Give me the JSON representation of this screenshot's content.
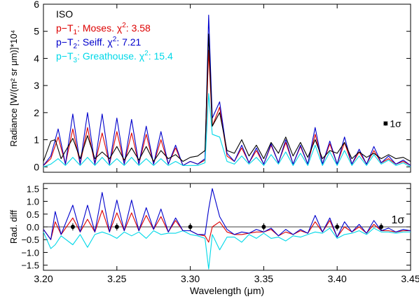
{
  "chart_data": [
    {
      "type": "line",
      "title": "",
      "xlabel": "",
      "ylabel": "Radiance [W/(m² sr μm)]*10⁴",
      "xlim": [
        3.2,
        3.45
      ],
      "ylim": [
        -0.2,
        6.0
      ],
      "yticks": [
        "0",
        "1",
        "2",
        "3",
        "4",
        "5",
        "6"
      ],
      "legend_placement": "top-left",
      "legend": [
        {
          "key": "iso",
          "base": "ISO",
          "label": "ISO",
          "color": "#000000"
        },
        {
          "key": "t1",
          "base": "p−T",
          "sub": "1",
          "rest": ": Moses.  χ",
          "sup": "2",
          "tail": ": 3.58",
          "label": "p−T1: Moses.  χ2: 3.58",
          "color": "#dd0000"
        },
        {
          "key": "t2",
          "base": "p−T",
          "sub": "2",
          "rest": ": Seiff.  χ",
          "sup": "2",
          "tail": ": 7.21",
          "label": "p−T2: Seiff.  χ2: 7.21",
          "color": "#0000cc"
        },
        {
          "key": "t3",
          "base": "p−T",
          "sub": "3",
          "rest": ": Greathouse.  χ",
          "sup": "2",
          "tail": ": 15.4",
          "label": "p−T3: Greathouse.  χ2: 15.4",
          "color": "#00d8e8"
        }
      ],
      "errorbar": {
        "label": "1σ",
        "x": 3.433,
        "y": 1.6,
        "err": 0.06
      },
      "series": [
        {
          "name": "ISO",
          "color": "#000000",
          "x": [
            3.2,
            3.205,
            3.208,
            3.212,
            3.22,
            3.225,
            3.23,
            3.235,
            3.24,
            3.245,
            3.25,
            3.255,
            3.26,
            3.265,
            3.27,
            3.275,
            3.28,
            3.285,
            3.29,
            3.295,
            3.3,
            3.305,
            3.31,
            3.3125,
            3.315,
            3.32,
            3.325,
            3.33,
            3.335,
            3.34,
            3.345,
            3.35,
            3.355,
            3.36,
            3.365,
            3.37,
            3.375,
            3.38,
            3.385,
            3.39,
            3.395,
            3.4,
            3.405,
            3.41,
            3.415,
            3.42,
            3.425,
            3.43,
            3.435,
            3.44,
            3.445,
            3.45
          ],
          "y": [
            0.2,
            0.95,
            1.0,
            0.3,
            1.05,
            0.3,
            1.15,
            0.3,
            0.55,
            0.3,
            0.75,
            0.25,
            0.7,
            0.25,
            0.75,
            0.2,
            0.6,
            0.3,
            0.45,
            0.2,
            0.35,
            0.4,
            0.6,
            4.9,
            1.5,
            2.0,
            0.6,
            0.5,
            1.0,
            0.4,
            0.8,
            0.3,
            0.9,
            0.5,
            1.1,
            0.4,
            0.9,
            0.35,
            1.0,
            0.3,
            0.6,
            0.5,
            0.9,
            0.3,
            0.55,
            0.35,
            0.5,
            0.3,
            0.45,
            0.3,
            0.35,
            0.2
          ]
        },
        {
          "name": "p−T1: Moses.  χ2: 3.58",
          "color": "#dd0000",
          "x": [
            3.2,
            3.205,
            3.21,
            3.215,
            3.22,
            3.225,
            3.23,
            3.235,
            3.24,
            3.245,
            3.25,
            3.255,
            3.26,
            3.265,
            3.27,
            3.275,
            3.28,
            3.285,
            3.29,
            3.295,
            3.3,
            3.305,
            3.31,
            3.3125,
            3.315,
            3.32,
            3.325,
            3.33,
            3.335,
            3.34,
            3.345,
            3.35,
            3.355,
            3.36,
            3.365,
            3.37,
            3.375,
            3.38,
            3.385,
            3.39,
            3.395,
            3.4,
            3.405,
            3.41,
            3.415,
            3.42,
            3.425,
            3.43,
            3.435,
            3.44,
            3.445,
            3.45
          ],
          "y": [
            0.05,
            0.3,
            1.1,
            0.1,
            1.4,
            0.1,
            1.45,
            0.1,
            1.25,
            0.1,
            1.3,
            0.1,
            1.25,
            0.1,
            1.2,
            0.1,
            1.0,
            0.1,
            0.7,
            0.05,
            0.2,
            0.1,
            0.25,
            4.3,
            1.5,
            2.2,
            0.4,
            0.2,
            0.7,
            0.15,
            0.6,
            0.1,
            0.8,
            0.15,
            0.9,
            0.1,
            0.75,
            0.1,
            1.2,
            0.1,
            0.85,
            0.1,
            0.9,
            0.1,
            0.55,
            0.1,
            0.6,
            0.15,
            0.3,
            0.1,
            0.2,
            0.05
          ]
        },
        {
          "name": "p−T2: Seiff.  χ2: 7.21",
          "color": "#0000cc",
          "x": [
            3.2,
            3.205,
            3.21,
            3.215,
            3.22,
            3.225,
            3.23,
            3.235,
            3.24,
            3.245,
            3.25,
            3.255,
            3.26,
            3.265,
            3.27,
            3.275,
            3.28,
            3.285,
            3.29,
            3.295,
            3.3,
            3.305,
            3.31,
            3.3125,
            3.315,
            3.32,
            3.325,
            3.33,
            3.335,
            3.34,
            3.345,
            3.35,
            3.355,
            3.36,
            3.365,
            3.37,
            3.375,
            3.38,
            3.385,
            3.39,
            3.395,
            3.4,
            3.405,
            3.41,
            3.415,
            3.42,
            3.425,
            3.43,
            3.435,
            3.44,
            3.445,
            3.45
          ],
          "y": [
            0.05,
            0.4,
            1.4,
            0.1,
            1.95,
            0.1,
            2.0,
            0.1,
            1.95,
            0.1,
            1.8,
            0.1,
            1.75,
            0.1,
            1.5,
            0.1,
            1.3,
            0.1,
            0.8,
            0.05,
            0.2,
            0.1,
            0.3,
            5.6,
            1.8,
            2.4,
            0.5,
            0.2,
            0.8,
            0.15,
            0.7,
            0.1,
            0.85,
            0.15,
            1.0,
            0.1,
            0.8,
            0.1,
            1.45,
            0.1,
            0.95,
            0.1,
            1.1,
            0.1,
            0.65,
            0.1,
            0.75,
            0.15,
            0.4,
            0.1,
            0.25,
            0.05
          ]
        },
        {
          "name": "p−T3: Greathouse.  χ2: 15.4",
          "color": "#00d8e8",
          "x": [
            3.2,
            3.205,
            3.21,
            3.215,
            3.22,
            3.225,
            3.23,
            3.235,
            3.24,
            3.245,
            3.25,
            3.255,
            3.26,
            3.265,
            3.27,
            3.275,
            3.28,
            3.285,
            3.29,
            3.295,
            3.3,
            3.305,
            3.31,
            3.3125,
            3.315,
            3.32,
            3.325,
            3.33,
            3.335,
            3.34,
            3.345,
            3.35,
            3.355,
            3.36,
            3.365,
            3.37,
            3.375,
            3.38,
            3.385,
            3.39,
            3.395,
            3.4,
            3.405,
            3.41,
            3.415,
            3.42,
            3.425,
            3.43,
            3.435,
            3.44,
            3.445,
            3.45
          ],
          "y": [
            0.0,
            0.1,
            0.3,
            0.05,
            0.35,
            0.05,
            0.35,
            0.05,
            0.35,
            0.05,
            0.3,
            0.05,
            0.35,
            0.05,
            0.3,
            0.05,
            0.3,
            0.05,
            0.2,
            0.05,
            0.05,
            0.05,
            0.15,
            2.7,
            1.2,
            1.1,
            0.2,
            0.1,
            0.4,
            0.1,
            0.35,
            0.05,
            0.45,
            0.1,
            0.55,
            0.05,
            0.5,
            0.05,
            0.8,
            0.05,
            0.55,
            0.05,
            0.6,
            0.05,
            0.4,
            0.05,
            0.45,
            0.1,
            0.25,
            0.05,
            0.15,
            0.0
          ]
        }
      ]
    },
    {
      "type": "line",
      "title": "",
      "xlabel": "Wavelength (μm)",
      "ylabel": "Rad. diff",
      "xlim": [
        3.2,
        3.45
      ],
      "ylim": [
        -1.7,
        1.7
      ],
      "xticks": [
        "3.20",
        "3.25",
        "3.30",
        "3.35",
        "3.40",
        "3.45"
      ],
      "yticks": [
        "1.5",
        "1.0",
        "0.5",
        "0.0",
        "−0.5",
        "−1.0",
        "−1.5"
      ],
      "errorbar_label": "1σ",
      "errorbars": {
        "x": [
          3.22,
          3.25,
          3.3,
          3.35,
          3.4,
          3.43
        ],
        "y": [
          0.0,
          0.0,
          0.0,
          0.0,
          0.0,
          0.0
        ],
        "err": [
          0.06,
          0.06,
          0.06,
          0.06,
          0.06,
          0.06
        ]
      },
      "series": [
        {
          "name": "p−T1: Moses.  χ2: 3.58",
          "color": "#dd0000",
          "x": [
            3.2,
            3.205,
            3.208,
            3.212,
            3.22,
            3.225,
            3.23,
            3.235,
            3.24,
            3.245,
            3.25,
            3.255,
            3.26,
            3.265,
            3.27,
            3.275,
            3.28,
            3.285,
            3.29,
            3.295,
            3.3,
            3.305,
            3.31,
            3.3125,
            3.315,
            3.32,
            3.325,
            3.33,
            3.335,
            3.34,
            3.345,
            3.35,
            3.355,
            3.36,
            3.365,
            3.37,
            3.375,
            3.38,
            3.385,
            3.39,
            3.395,
            3.4,
            3.405,
            3.41,
            3.415,
            3.42,
            3.425,
            3.43,
            3.435,
            3.44,
            3.445,
            3.45
          ],
          "y": [
            -0.1,
            -0.5,
            0.2,
            -0.3,
            0.35,
            -0.2,
            0.3,
            -0.2,
            0.65,
            -0.2,
            0.55,
            -0.15,
            0.55,
            -0.15,
            0.45,
            -0.1,
            0.4,
            -0.2,
            0.25,
            -0.15,
            -0.15,
            -0.3,
            -0.35,
            -0.6,
            0.0,
            0.2,
            -0.2,
            -0.3,
            -0.3,
            -0.25,
            -0.2,
            -0.2,
            -0.1,
            -0.35,
            -0.2,
            -0.3,
            -0.15,
            -0.25,
            0.2,
            -0.2,
            0.25,
            -0.4,
            0.0,
            -0.2,
            0.0,
            -0.25,
            0.1,
            -0.15,
            -0.15,
            -0.2,
            -0.15,
            -0.15
          ]
        },
        {
          "name": "p−T2: Seiff.  χ2: 7.21",
          "color": "#0000cc",
          "x": [
            3.2,
            3.205,
            3.208,
            3.212,
            3.22,
            3.225,
            3.23,
            3.235,
            3.24,
            3.245,
            3.25,
            3.255,
            3.26,
            3.265,
            3.27,
            3.275,
            3.28,
            3.285,
            3.29,
            3.295,
            3.3,
            3.305,
            3.31,
            3.3125,
            3.315,
            3.32,
            3.325,
            3.33,
            3.335,
            3.34,
            3.345,
            3.35,
            3.355,
            3.36,
            3.365,
            3.37,
            3.375,
            3.38,
            3.385,
            3.39,
            3.395,
            3.4,
            3.405,
            3.41,
            3.415,
            3.42,
            3.425,
            3.43,
            3.435,
            3.44,
            3.445,
            3.45
          ],
          "y": [
            -0.1,
            -0.5,
            0.6,
            -0.3,
            0.85,
            -0.2,
            0.85,
            -0.2,
            1.35,
            -0.2,
            1.05,
            -0.15,
            1.05,
            -0.15,
            0.75,
            -0.1,
            0.7,
            -0.2,
            0.35,
            -0.15,
            -0.15,
            -0.3,
            -0.3,
            0.7,
            1.5,
            0.4,
            -0.1,
            -0.3,
            -0.2,
            -0.25,
            -0.1,
            -0.2,
            -0.05,
            -0.35,
            -0.1,
            -0.3,
            -0.1,
            -0.25,
            0.45,
            -0.2,
            0.35,
            -0.4,
            0.2,
            -0.2,
            0.1,
            -0.25,
            0.25,
            -0.15,
            -0.05,
            -0.2,
            -0.1,
            -0.15
          ]
        },
        {
          "name": "p−T3: Greathouse.  χ2: 15.4",
          "color": "#00d8e8",
          "x": [
            3.2,
            3.205,
            3.208,
            3.212,
            3.22,
            3.225,
            3.23,
            3.235,
            3.24,
            3.245,
            3.25,
            3.255,
            3.26,
            3.265,
            3.27,
            3.275,
            3.28,
            3.285,
            3.29,
            3.295,
            3.3,
            3.305,
            3.31,
            3.3125,
            3.315,
            3.32,
            3.325,
            3.33,
            3.335,
            3.34,
            3.345,
            3.35,
            3.355,
            3.36,
            3.365,
            3.37,
            3.375,
            3.38,
            3.385,
            3.39,
            3.395,
            3.4,
            3.405,
            3.41,
            3.415,
            3.42,
            3.425,
            3.43,
            3.435,
            3.44,
            3.445,
            3.45
          ],
          "y": [
            -0.2,
            -0.85,
            -0.7,
            -0.35,
            -0.7,
            -0.3,
            -0.8,
            -0.3,
            -0.2,
            -0.3,
            -0.45,
            -0.2,
            -0.35,
            -0.2,
            -0.45,
            -0.15,
            -0.3,
            -0.25,
            -0.25,
            -0.15,
            -0.3,
            -0.35,
            -0.45,
            -1.65,
            -0.3,
            -0.9,
            -0.4,
            -0.4,
            -0.6,
            -0.3,
            -0.45,
            -0.25,
            -0.45,
            -0.4,
            -0.55,
            -0.35,
            -0.4,
            -0.3,
            -0.2,
            -0.25,
            -0.05,
            -0.45,
            -0.3,
            -0.25,
            -0.15,
            -0.3,
            -0.05,
            -0.2,
            -0.2,
            -0.25,
            -0.2,
            -0.2
          ]
        }
      ]
    }
  ]
}
